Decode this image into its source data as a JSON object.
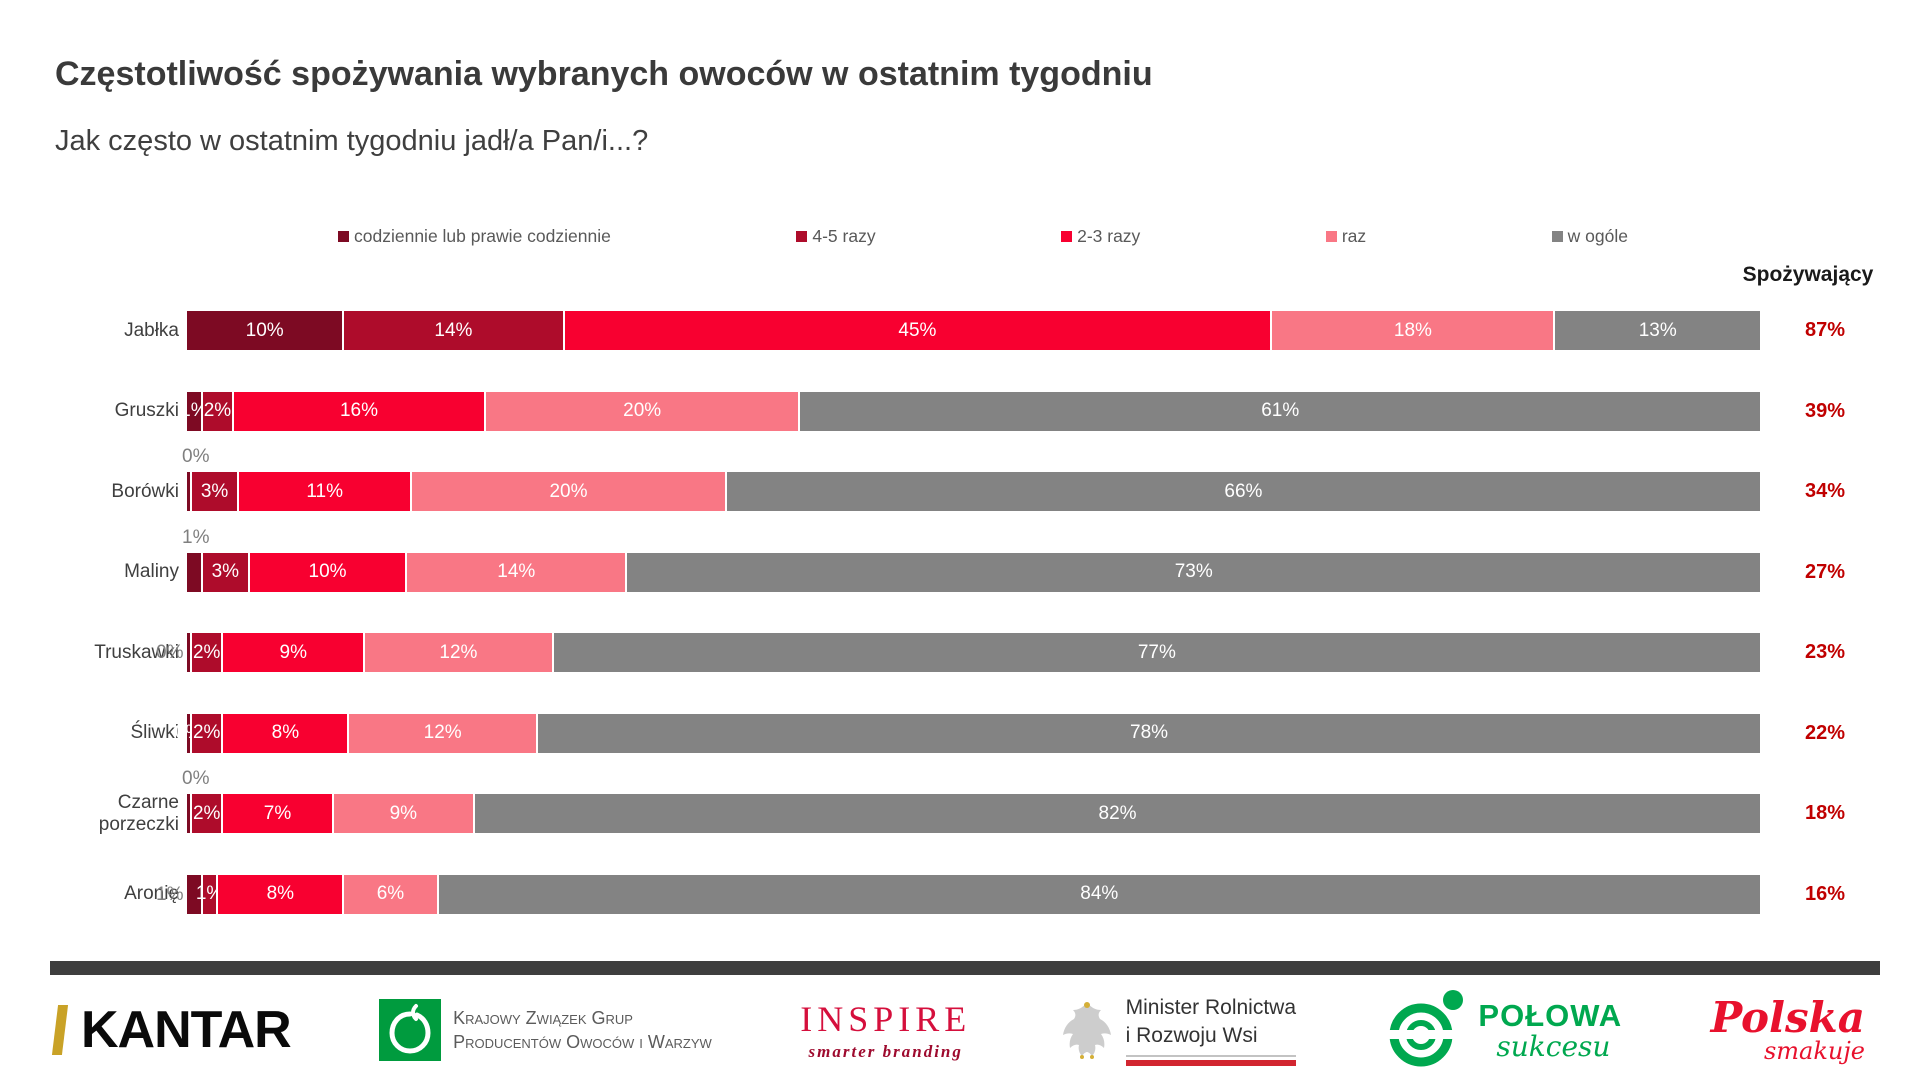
{
  "title": "Częstotliwość spożywania wybranych owoców w ostatnim tygodniu",
  "subtitle": "Jak często w ostatnim tygodniu jadł/a Pan/i...?",
  "consumers_header": "Spożywający",
  "consumer_value_color": "#c00000",
  "chart_data": {
    "type": "bar",
    "stacked": true,
    "orientation": "horizontal",
    "unit": "%",
    "xlim": [
      0,
      100
    ],
    "title": "Częstotliwość spożywania wybranych owoców w ostatnim tygodniu",
    "subtitle": "Jak często w ostatnim tygodniu jadł/a Pan/i...?",
    "legend_position": "top",
    "categories": [
      "Jabłka",
      "Gruszki",
      "Borówki",
      "Maliny",
      "Truskawki",
      "Śliwki",
      "Czarne porzeczki",
      "Aronię"
    ],
    "display_categories": [
      "Jabłka",
      "Gruszki",
      "Borówki",
      "Maliny",
      "Truskawki",
      "Śliwki",
      "Czarne\nporzeczki",
      "Aronię"
    ],
    "series": [
      {
        "name": "codziennie lub prawie codziennie",
        "color": "#7d0a23",
        "values": [
          10,
          1,
          0,
          1,
          0,
          0,
          0,
          1
        ]
      },
      {
        "name": "4-5 razy",
        "color": "#ae0c2b",
        "values": [
          14,
          2,
          3,
          3,
          2,
          2,
          2,
          1
        ]
      },
      {
        "name": "2-3 razy",
        "color": "#f80030",
        "values": [
          45,
          16,
          11,
          10,
          9,
          8,
          7,
          8
        ]
      },
      {
        "name": "raz",
        "color": "#f97785",
        "values": [
          18,
          20,
          20,
          14,
          12,
          12,
          9,
          6
        ]
      },
      {
        "name": "w ogóle",
        "color": "#838383",
        "values": [
          13,
          61,
          66,
          73,
          77,
          78,
          82,
          84
        ]
      }
    ],
    "first_label_styles": [
      "inside",
      "inside",
      "above",
      "above",
      "left",
      "inside",
      "above",
      "left"
    ],
    "consumers": {
      "label": "Spożywający",
      "values": [
        "87%",
        "39%",
        "34%",
        "27%",
        "23%",
        "22%",
        "18%",
        "16%"
      ]
    }
  },
  "footer": {
    "logos": [
      {
        "name": "kantar",
        "text": "KANTAR",
        "accent_color": "#c9a227"
      },
      {
        "name": "kzgpoiw",
        "line1": "Krajowy Związek Grup",
        "line2": "Producentów Owoców i Warzyw",
        "accent_color": "#009b3e"
      },
      {
        "name": "inspire",
        "text": "INSPIRE",
        "tagline": "smarter branding",
        "accent_color": "#d50f3c"
      },
      {
        "name": "ministry",
        "line1": "Minister Rolnictwa",
        "line2": "i Rozwoju Wsi",
        "accent_color": "#d22630"
      },
      {
        "name": "polowa-sukcesu",
        "text": "POŁOWA",
        "text2": "sukcesu",
        "accent_color": "#00a84f"
      },
      {
        "name": "polska-smakuje",
        "text": "Polska",
        "text2": "smakuje",
        "accent_color": "#e8112d"
      }
    ]
  }
}
